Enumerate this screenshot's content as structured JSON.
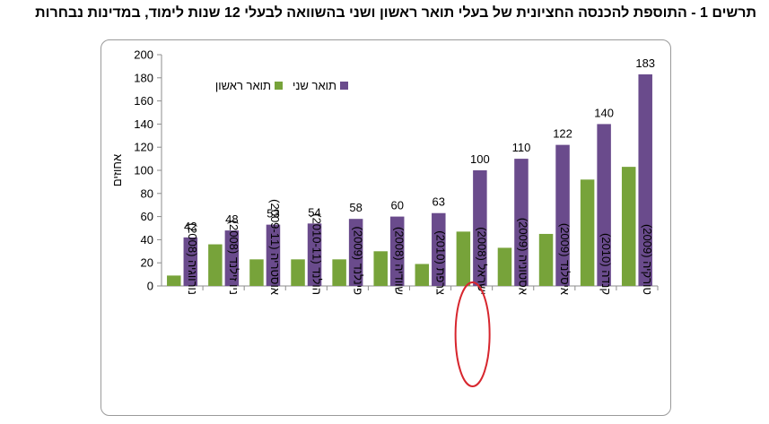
{
  "title": "תרשים 1 - התוספת להכנסה החציונית של בעלי תואר ראשון ושני בהשוואה לבעלי 12 שנות לימוד, במדינות נבחרות",
  "chart_data": {
    "type": "bar",
    "ylabel": "אחוזים",
    "ylim": [
      0,
      200
    ],
    "yticks": [
      0,
      20,
      40,
      60,
      80,
      100,
      120,
      140,
      160,
      180,
      200
    ],
    "grid": false,
    "legend_position": "top-left",
    "categories": [
      "נורווגיה (2008)",
      "ניו זילנד (2008)",
      "אוסטריה (2009-11)",
      "הולנד (2010-11)",
      "פינלנד (2009)",
      "שוודיה (2008)",
      "צרפת (2010)",
      "ישראל (2008)",
      "אסטוניה (2009)",
      "איסלנד (2009)",
      "קנדה (2010)",
      "טורקיה (2009)"
    ],
    "highlight_category": "ישראל (2008)",
    "series": [
      {
        "name": "תואר ראשון",
        "color": "#77a33a",
        "values": [
          9,
          36,
          23,
          23,
          23,
          30,
          19,
          47,
          33,
          45,
          92,
          103
        ]
      },
      {
        "name": "תואר שני",
        "color": "#6a4b8c",
        "values": [
          42,
          48,
          53,
          54,
          58,
          60,
          63,
          100,
          110,
          122,
          140,
          183
        ],
        "data_labels": [
          "42",
          "48",
          "53",
          "54",
          "58",
          "60",
          "63",
          "100",
          "110",
          "122",
          "140",
          "183"
        ]
      }
    ]
  }
}
